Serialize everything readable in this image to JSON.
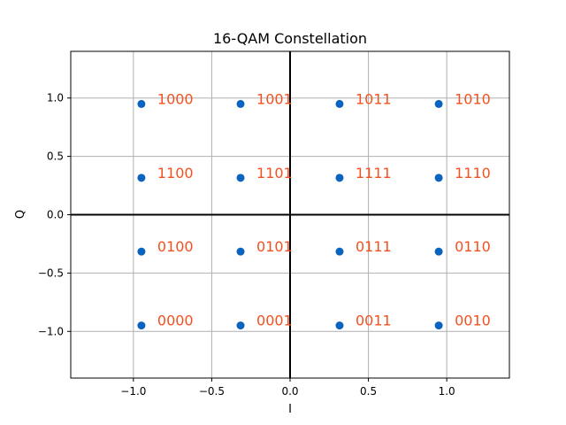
{
  "chart_data": {
    "type": "scatter",
    "title": "16-QAM Constellation",
    "xlabel": "I",
    "ylabel": "Q",
    "xlim": [
      -1.4,
      1.4
    ],
    "ylim": [
      -1.4,
      1.4
    ],
    "x_ticks": [
      -1.0,
      -0.5,
      0.0,
      0.5,
      1.0
    ],
    "y_ticks": [
      -1.0,
      -0.5,
      0.0,
      0.5,
      1.0
    ],
    "x_tick_labels": [
      "−1.0",
      "−0.5",
      "0.0",
      "0.5",
      "1.0"
    ],
    "y_tick_labels": [
      "−1.0",
      "−0.5",
      "0.0",
      "0.5",
      "1.0"
    ],
    "grid": true,
    "zero_lines": true,
    "colors": {
      "points": "#0a64bf",
      "labels": "#f4511e",
      "grid": "#b0b0b0"
    },
    "points": [
      {
        "x": -0.949,
        "y": 0.949,
        "label": "1000"
      },
      {
        "x": -0.316,
        "y": 0.949,
        "label": "1001"
      },
      {
        "x": 0.316,
        "y": 0.949,
        "label": "1011"
      },
      {
        "x": 0.949,
        "y": 0.949,
        "label": "1010"
      },
      {
        "x": -0.949,
        "y": 0.316,
        "label": "1100"
      },
      {
        "x": -0.316,
        "y": 0.316,
        "label": "1101"
      },
      {
        "x": 0.316,
        "y": 0.316,
        "label": "1111"
      },
      {
        "x": 0.949,
        "y": 0.316,
        "label": "1110"
      },
      {
        "x": -0.949,
        "y": -0.316,
        "label": "0100"
      },
      {
        "x": -0.316,
        "y": -0.316,
        "label": "0101"
      },
      {
        "x": 0.316,
        "y": -0.316,
        "label": "0111"
      },
      {
        "x": 0.949,
        "y": -0.316,
        "label": "0110"
      },
      {
        "x": -0.949,
        "y": -0.949,
        "label": "0000"
      },
      {
        "x": -0.316,
        "y": -0.949,
        "label": "0001"
      },
      {
        "x": 0.316,
        "y": -0.949,
        "label": "0011"
      },
      {
        "x": 0.949,
        "y": -0.949,
        "label": "0010"
      }
    ]
  }
}
